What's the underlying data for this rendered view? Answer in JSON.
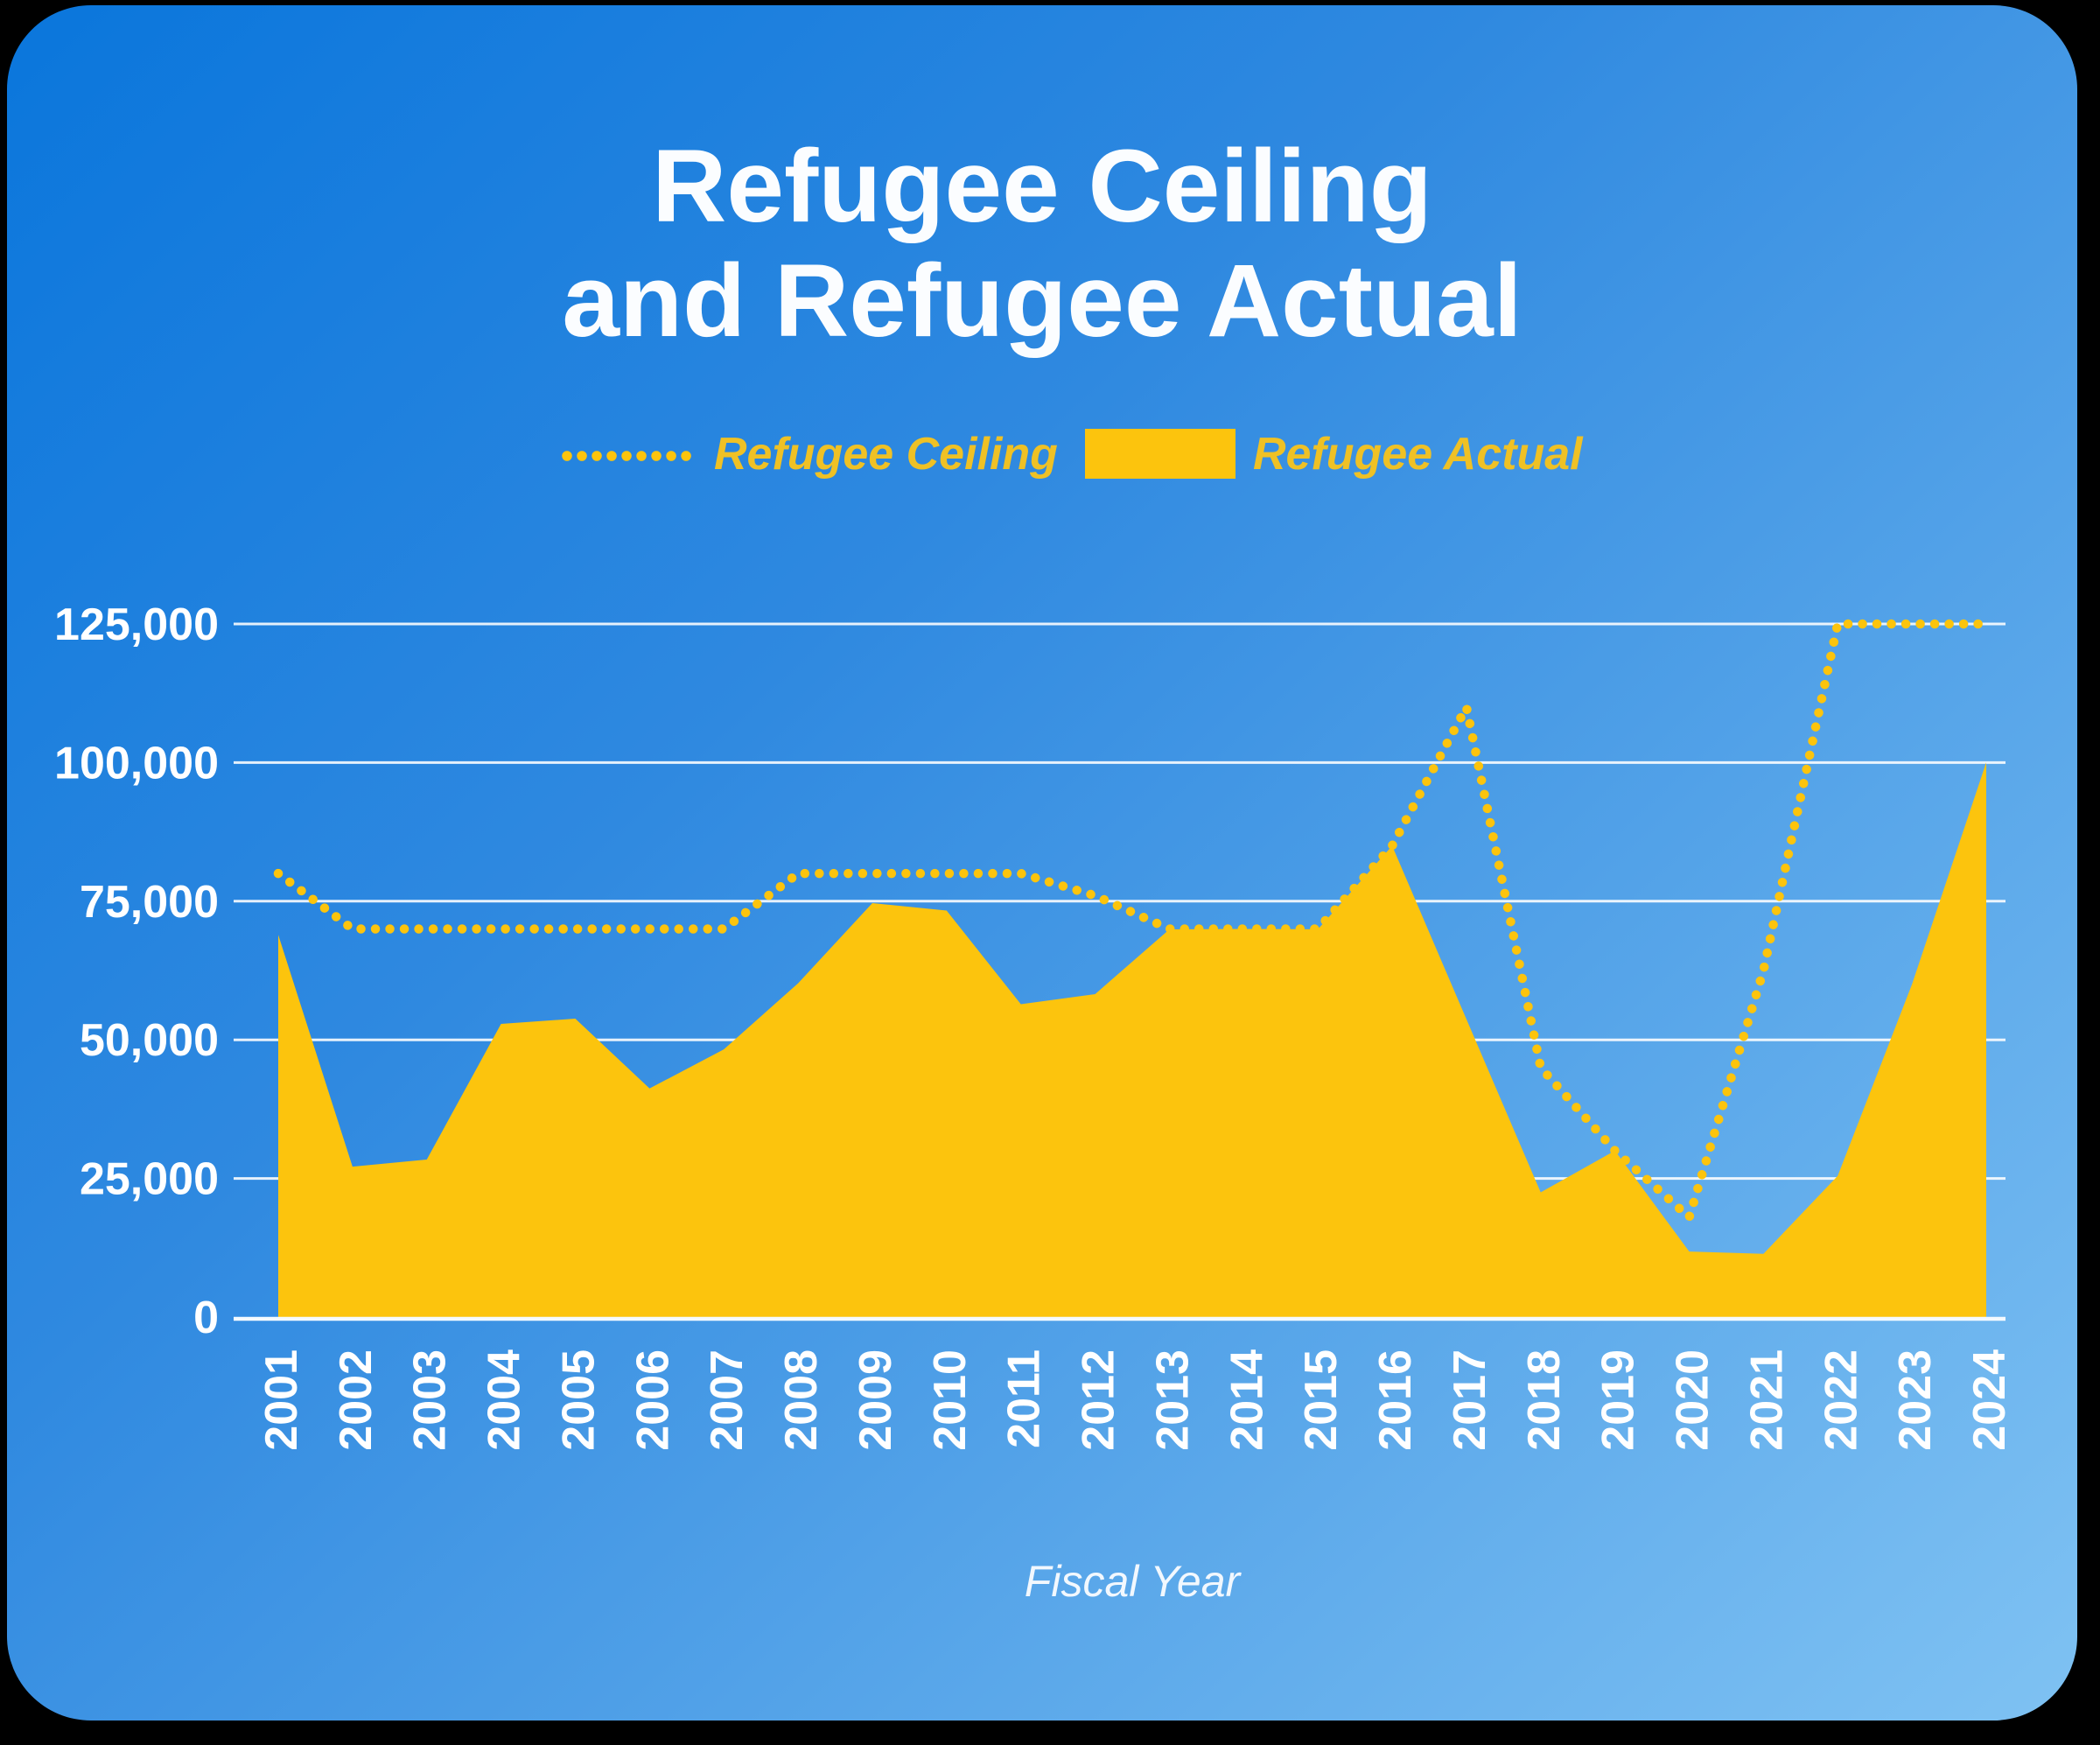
{
  "title": {
    "line1": "Refugee Ceiling",
    "line2": "and Refugee Actual"
  },
  "legend": {
    "ceiling_label": "Refugee Ceiling",
    "actual_label": "Refugee Actual"
  },
  "chart_data": {
    "type": "combo",
    "x": [
      2001,
      2002,
      2003,
      2004,
      2005,
      2006,
      2007,
      2008,
      2009,
      2010,
      2011,
      2012,
      2013,
      2014,
      2015,
      2016,
      2017,
      2018,
      2019,
      2020,
      2021,
      2022,
      2023,
      2024
    ],
    "series": [
      {
        "name": "Refugee Ceiling",
        "type": "line",
        "style": "dotted",
        "values": [
          80000,
          70000,
          70000,
          70000,
          70000,
          70000,
          70000,
          80000,
          80000,
          80000,
          80000,
          76000,
          70000,
          70000,
          70000,
          85000,
          110000,
          45000,
          30000,
          18000,
          62500,
          125000,
          125000,
          125000
        ]
      },
      {
        "name": "Refugee Actual",
        "type": "area",
        "style": "filled",
        "values": [
          68925,
          27131,
          28403,
          52873,
          53813,
          41223,
          48282,
          60191,
          74654,
          73311,
          56424,
          58238,
          69926,
          69987,
          69933,
          84994,
          53716,
          22491,
          30000,
          11814,
          11411,
          25465,
          60014,
          100034
        ]
      }
    ],
    "xlabel": "Fiscal Year",
    "ylabel": "",
    "ylim": [
      0,
      125000
    ],
    "yticks": [
      {
        "value": 0,
        "label": "0"
      },
      {
        "value": 25000,
        "label": "25,000"
      },
      {
        "value": 50000,
        "label": "50,000"
      },
      {
        "value": 75000,
        "label": "75,000"
      },
      {
        "value": 100000,
        "label": "100,000"
      },
      {
        "value": 125000,
        "label": "125,000"
      }
    ],
    "grid": "horizontal",
    "legend_position": "top-center"
  },
  "colors": {
    "series_yellow": "#FCC40D",
    "legend_text": "#EFC125",
    "axis_text": "#FFFFFF",
    "gridline": "rgba(255,255,255,0.88)",
    "zero_axis": "#F4FAFF",
    "background_top": "#0A76DC",
    "background_bottom": "#7FC2F3"
  }
}
